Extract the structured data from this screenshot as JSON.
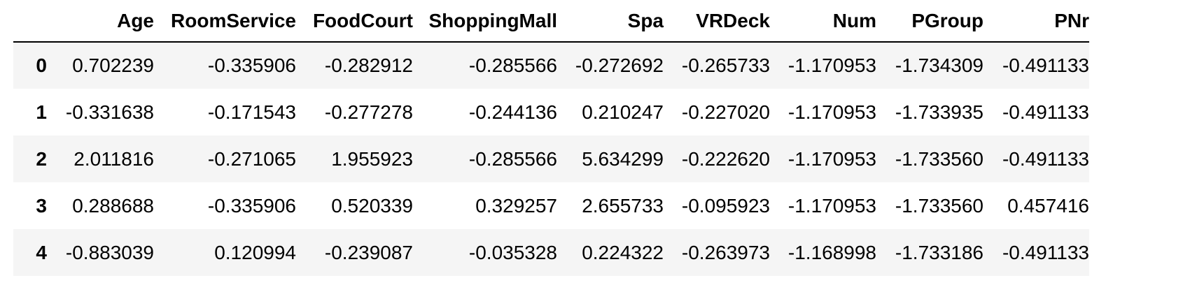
{
  "table": {
    "index_header": "",
    "columns": [
      "Age",
      "RoomService",
      "FoodCourt",
      "ShoppingMall",
      "Spa",
      "VRDeck",
      "Num",
      "PGroup",
      "PNr"
    ],
    "rows": [
      {
        "index": "0",
        "cells": [
          "0.702239",
          "-0.335906",
          "-0.282912",
          "-0.285566",
          "-0.272692",
          "-0.265733",
          "-1.170953",
          "-1.734309",
          "-0.491133"
        ]
      },
      {
        "index": "1",
        "cells": [
          "-0.331638",
          "-0.171543",
          "-0.277278",
          "-0.244136",
          "0.210247",
          "-0.227020",
          "-1.170953",
          "-1.733935",
          "-0.491133"
        ]
      },
      {
        "index": "2",
        "cells": [
          "2.011816",
          "-0.271065",
          "1.955923",
          "-0.285566",
          "5.634299",
          "-0.222620",
          "-1.170953",
          "-1.733560",
          "-0.491133"
        ]
      },
      {
        "index": "3",
        "cells": [
          "0.288688",
          "-0.335906",
          "0.520339",
          "0.329257",
          "2.655733",
          "-0.095923",
          "-1.170953",
          "-1.733560",
          "0.457416"
        ]
      },
      {
        "index": "4",
        "cells": [
          "-0.883039",
          "0.120994",
          "-0.239087",
          "-0.035328",
          "0.224322",
          "-0.263973",
          "-1.168998",
          "-1.733186",
          "-0.491133"
        ]
      }
    ]
  },
  "colors": {
    "row_stripe": "#f5f5f5",
    "row_plain": "#ffffff",
    "header_rule": "#000000",
    "text": "#000000"
  }
}
